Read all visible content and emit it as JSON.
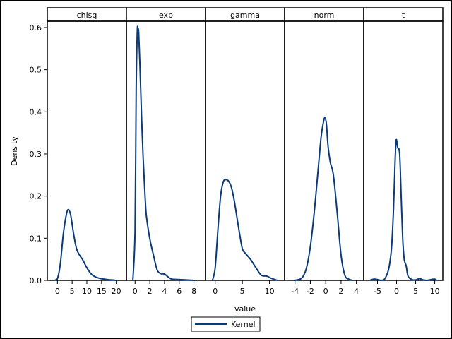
{
  "chart_data": {
    "type": "line",
    "ylabel": "Density",
    "xlabel": "value",
    "ylim": [
      0,
      0.615
    ],
    "y_ticks": [
      "0.0",
      "0.1",
      "0.2",
      "0.3",
      "0.4",
      "0.5",
      "0.6"
    ],
    "y_tick_values": [
      0,
      0.1,
      0.2,
      0.3,
      0.4,
      0.5,
      0.6
    ],
    "legend": {
      "placement": "bottom-center",
      "label": "Kernel"
    },
    "line_color": "#0b3a7a",
    "panels": [
      {
        "name": "chisq",
        "xlim": [
          -2.0,
          22.0
        ],
        "x_ticks": [
          0,
          5,
          10,
          15,
          20
        ],
        "x_tick_labels": [
          "0",
          "5",
          "10",
          "15",
          "20"
        ],
        "x": [
          -1,
          0,
          1,
          2,
          3,
          3.7,
          4.5,
          5.5,
          6.5,
          7.5,
          8.5,
          10,
          11.5,
          13,
          15,
          17,
          18.5,
          20
        ],
        "y": [
          0.0,
          0.004,
          0.04,
          0.11,
          0.155,
          0.168,
          0.155,
          0.11,
          0.075,
          0.06,
          0.05,
          0.03,
          0.015,
          0.008,
          0.004,
          0.002,
          0.001,
          0.0
        ]
      },
      {
        "name": "exp",
        "xlim": [
          -0.6,
          9.0
        ],
        "x_ticks": [
          0,
          2,
          4,
          6,
          8
        ],
        "x_tick_labels": [
          "0",
          "2",
          "4",
          "6",
          "8"
        ],
        "x": [
          -0.3,
          0,
          0.15,
          0.3,
          0.4,
          0.5,
          0.7,
          0.9,
          1.1,
          1.3,
          1.5,
          1.8,
          2.1,
          2.5,
          3,
          3.5,
          4,
          4.5,
          5,
          6,
          7,
          8
        ],
        "y": [
          0.0,
          0.12,
          0.45,
          0.59,
          0.596,
          0.585,
          0.49,
          0.38,
          0.29,
          0.22,
          0.16,
          0.12,
          0.09,
          0.06,
          0.025,
          0.016,
          0.015,
          0.008,
          0.003,
          0.002,
          0.001,
          0.0
        ]
      },
      {
        "name": "gamma",
        "xlim": [
          -1.0,
          12.0
        ],
        "x_ticks": [
          0,
          5,
          10
        ],
        "x_tick_labels": [
          "0",
          "5",
          "10"
        ],
        "x": [
          -0.5,
          0,
          0.5,
          1,
          1.5,
          2,
          2.5,
          3,
          3.5,
          4,
          4.5,
          5,
          5.5,
          6.5,
          7.5,
          8.5,
          9.5,
          10.5,
          11.5
        ],
        "y": [
          0.0,
          0.03,
          0.12,
          0.2,
          0.234,
          0.239,
          0.235,
          0.22,
          0.19,
          0.15,
          0.11,
          0.075,
          0.065,
          0.05,
          0.03,
          0.012,
          0.01,
          0.004,
          0.0
        ]
      },
      {
        "name": "norm",
        "xlim": [
          -4.8,
          4.4
        ],
        "x_ticks": [
          -4,
          -2,
          0,
          2,
          4
        ],
        "x_tick_labels": [
          "-4",
          "-2",
          "0",
          "2",
          "4"
        ],
        "x": [
          -4.2,
          -3.5,
          -3,
          -2.5,
          -2,
          -1.5,
          -1,
          -0.6,
          -0.3,
          -0.1,
          0.1,
          0.3,
          0.6,
          1,
          1.5,
          2,
          2.5,
          3,
          3.5
        ],
        "y": [
          0.0,
          0.002,
          0.008,
          0.03,
          0.08,
          0.16,
          0.26,
          0.34,
          0.375,
          0.386,
          0.37,
          0.32,
          0.28,
          0.25,
          0.16,
          0.06,
          0.012,
          0.003,
          0.0
        ]
      },
      {
        "name": "t",
        "xlim": [
          -7.5,
          11.0
        ],
        "x_ticks": [
          -5,
          0,
          5,
          10
        ],
        "x_tick_labels": [
          "-5",
          "0",
          "5",
          "10"
        ],
        "x": [
          -7,
          -6,
          -5,
          -4,
          -3,
          -2,
          -1.3,
          -0.8,
          -0.4,
          -0.1,
          0.3,
          0.8,
          1.2,
          1.6,
          2,
          2.5,
          3,
          4,
          5,
          6,
          7,
          8,
          9,
          10,
          10.5
        ],
        "y": [
          0.0,
          0.003,
          0.002,
          0.0,
          0.005,
          0.03,
          0.08,
          0.17,
          0.28,
          0.333,
          0.315,
          0.3,
          0.2,
          0.1,
          0.05,
          0.035,
          0.01,
          0.002,
          0.001,
          0.004,
          0.001,
          0.0,
          0.002,
          0.003,
          0.0
        ]
      }
    ]
  }
}
